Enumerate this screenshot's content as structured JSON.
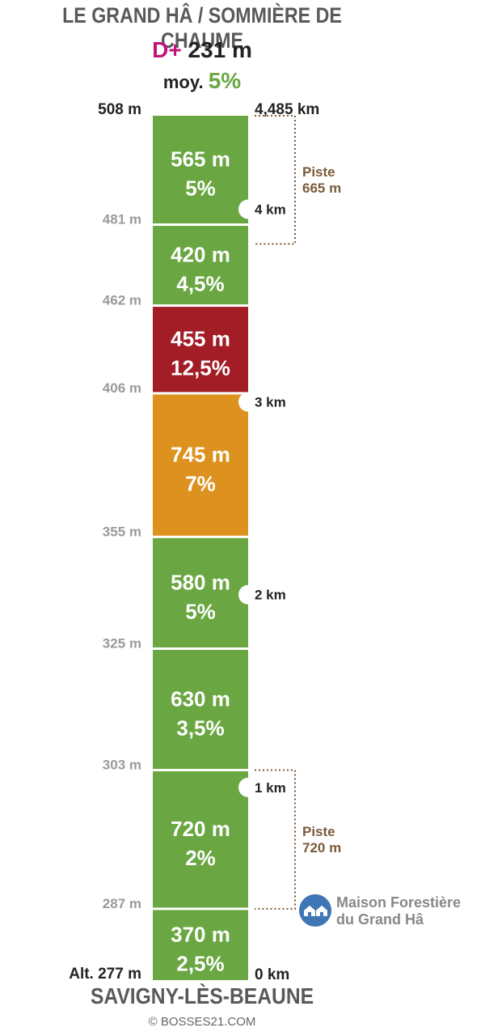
{
  "header": {
    "title": "LE GRAND HÂ / SOMMIÈRE DE CHAUME",
    "dplus_label": "D+",
    "dplus_value": "231 m",
    "avg_label": "moy.",
    "avg_value": "5%"
  },
  "footer": {
    "start_name": "SAVIGNY-LÈS-BEAUNE",
    "credit": "© BOSSES21.COM"
  },
  "chart_data": {
    "type": "bar",
    "colors": {
      "green": "#6aa641",
      "orange": "#dd911e",
      "red": "#a21d26"
    },
    "segments": [
      {
        "length": "370 m",
        "grade": "2,5%",
        "length_m": 370,
        "grade_pct": 2.5,
        "color": "green"
      },
      {
        "length": "720 m",
        "grade": "2%",
        "length_m": 720,
        "grade_pct": 2,
        "color": "green"
      },
      {
        "length": "630 m",
        "grade": "3,5%",
        "length_m": 630,
        "grade_pct": 3.5,
        "color": "green"
      },
      {
        "length": "580 m",
        "grade": "5%",
        "length_m": 580,
        "grade_pct": 5,
        "color": "green"
      },
      {
        "length": "745 m",
        "grade": "7%",
        "length_m": 745,
        "grade_pct": 7,
        "color": "orange"
      },
      {
        "length": "455 m",
        "grade": "12,5%",
        "length_m": 455,
        "grade_pct": 12.5,
        "color": "red"
      },
      {
        "length": "420 m",
        "grade": "4,5%",
        "length_m": 420,
        "grade_pct": 4.5,
        "color": "green"
      },
      {
        "length": "565 m",
        "grade": "5%",
        "length_m": 565,
        "grade_pct": 5,
        "color": "green"
      }
    ],
    "altitudes": [
      "Alt. 277 m",
      "287 m",
      "303 m",
      "325 m",
      "355 m",
      "406 m",
      "462 m",
      "481 m",
      "508 m"
    ],
    "km_markers": [
      {
        "label": "0 km",
        "km": 0
      },
      {
        "label": "1 km",
        "km": 1
      },
      {
        "label": "2 km",
        "km": 2
      },
      {
        "label": "3 km",
        "km": 3
      },
      {
        "label": "4 km",
        "km": 4
      },
      {
        "label": "4,485 km",
        "km": 4.485
      }
    ],
    "pistes": [
      {
        "label": "Piste",
        "length": "720 m",
        "from_km": 0.37,
        "to_km": 1.09
      },
      {
        "label": "Piste",
        "length": "665 m",
        "from_km": 3.82,
        "to_km": 4.485
      }
    ],
    "poi": {
      "line1": "Maison Forestière",
      "line2": "du Grand Hâ",
      "icon": "house-icon",
      "color": "#3f76b5",
      "km": 0.37
    }
  }
}
